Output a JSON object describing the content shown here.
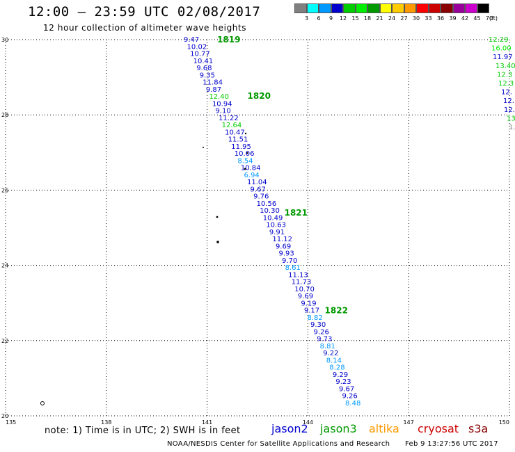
{
  "header": {
    "title": "12:00 – 23:59 UTC 02/08/2017",
    "subtitle": "12 hour collection of altimeter wave heights"
  },
  "legend": {
    "colors": [
      "#808080",
      "#00ffff",
      "#0099ff",
      "#0000cc",
      "#00cc00",
      "#00ee00",
      "#009900",
      "#ffff00",
      "#ffcc00",
      "#ff9900",
      "#ff0000",
      "#cc0000",
      "#880000",
      "#990099",
      "#cc00cc",
      "#000000"
    ],
    "labels": [
      "3",
      "6",
      "9",
      "12",
      "15",
      "18",
      "21",
      "24",
      "27",
      "30",
      "33",
      "36",
      "39",
      "42",
      "45",
      "70"
    ],
    "unit": "(ft)"
  },
  "axes": {
    "lon_ticks": [
      "135",
      "138",
      "141",
      "144",
      "147",
      "150"
    ],
    "lat_ticks": [
      "20",
      "22",
      "24",
      "26",
      "28",
      "30"
    ]
  },
  "chart_data": {
    "type": "scatter",
    "xlabel": "",
    "ylabel": "",
    "xlim": [
      135,
      150
    ],
    "ylim": [
      20,
      30
    ],
    "pass_labels": [
      {
        "text": "1819",
        "lon": 141.3,
        "lat": 30.0
      },
      {
        "text": "1820",
        "lon": 142.2,
        "lat": 28.5
      },
      {
        "text": "1821",
        "lon": 143.3,
        "lat": 25.4
      },
      {
        "text": "1822",
        "lon": 144.5,
        "lat": 22.8
      }
    ],
    "tracks": [
      {
        "values": [
          "9.47",
          "10.02",
          "10.77",
          "10.41",
          "9.68",
          "9.35",
          "11.84",
          "9.87",
          "12.40",
          "10.94",
          "9.10",
          "11.22",
          "12.64",
          "10.47",
          "11.51",
          "11.95",
          "10.06",
          "8.54",
          "10.84",
          "6.94",
          "11.04",
          "9.67",
          "9.76",
          "10.56",
          "10.30",
          "10.49",
          "10.63",
          "9.91",
          "11.12",
          "9.69",
          "9.93",
          "9.70",
          "8.61",
          "11.13",
          "11.73",
          "10.70",
          "9.69",
          "9.19",
          "9.17",
          "8.82",
          "9.30",
          "9.26",
          "9.73",
          "8.81",
          "9.22",
          "8.14",
          "8.28",
          "9.29",
          "9.23",
          "9.67",
          "9.26",
          "8.48"
        ]
      },
      {
        "values": [
          "12.29",
          "16.00",
          "11.97",
          "13.40",
          "12.3",
          "12.3",
          "12.",
          "12.",
          "12.",
          "13",
          "1."
        ]
      }
    ]
  },
  "footer": {
    "note": "note:  1) Time is in UTC;  2) SWH is in feet",
    "missions": [
      {
        "name": "jason2",
        "color": "#0000cc"
      },
      {
        "name": "jason3",
        "color": "#009900"
      },
      {
        "name": "altika",
        "color": "#ff9900"
      },
      {
        "name": "cryosat",
        "color": "#cc0000"
      },
      {
        "name": "s3a",
        "color": "#880000"
      }
    ],
    "credit": "NOAA/NESDIS Center for Satellite Applications and Research",
    "timestamp": "Feb  9 13:27:56 UTC 2017"
  }
}
